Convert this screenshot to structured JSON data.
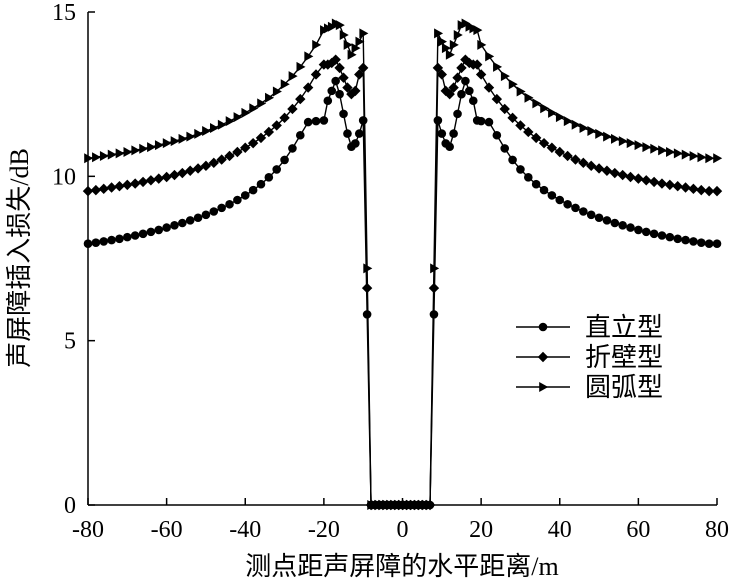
{
  "chart_data": {
    "type": "line",
    "title": "",
    "xlabel": "测点距声屏障的水平距离/m",
    "ylabel": "声屏障插入损失/dB",
    "xlim": [
      -80,
      80
    ],
    "ylim": [
      0,
      15
    ],
    "xticks": [
      -80,
      -60,
      -40,
      -20,
      0,
      20,
      40,
      60,
      80
    ],
    "yticks": [
      0,
      5,
      10,
      15
    ],
    "xtick_labels": [
      "-80",
      "-60",
      "-40",
      "-20",
      "0",
      "20",
      "40",
      "60",
      "80"
    ],
    "ytick_labels": [
      "0",
      "5",
      "10",
      "15"
    ],
    "grid": false,
    "legend_position": "right-middle",
    "x": [
      -80,
      -78,
      -76,
      -74,
      -72,
      -70,
      -68,
      -66,
      -64,
      -62,
      -60,
      -58,
      -56,
      -54,
      -52,
      -50,
      -48,
      -46,
      -44,
      -42,
      -40,
      -38,
      -36,
      -34,
      -32,
      -30,
      -28,
      -26,
      -24,
      -22,
      -20,
      -19,
      -18,
      -17,
      -16,
      -15,
      -14,
      -13,
      -12,
      -11,
      -10,
      -9,
      -8,
      -7,
      -6,
      -5,
      -4,
      -3,
      -2,
      -1,
      0,
      1,
      2,
      3,
      4,
      5,
      6,
      7,
      8,
      9,
      10,
      11,
      12,
      13,
      14,
      15,
      16,
      17,
      18,
      19,
      20,
      22,
      24,
      26,
      28,
      30,
      32,
      34,
      36,
      38,
      40,
      42,
      44,
      46,
      48,
      50,
      52,
      54,
      56,
      58,
      60,
      62,
      64,
      66,
      68,
      70,
      72,
      74,
      76,
      78,
      80
    ],
    "series": [
      {
        "name": "直立型",
        "marker": "circle",
        "values": [
          7.95,
          7.98,
          8.02,
          8.06,
          8.1,
          8.15,
          8.2,
          8.25,
          8.31,
          8.37,
          8.44,
          8.51,
          8.58,
          8.66,
          8.74,
          8.83,
          8.93,
          9.04,
          9.15,
          9.28,
          9.42,
          9.58,
          9.76,
          9.97,
          10.21,
          10.5,
          10.85,
          11.25,
          11.65,
          11.68,
          11.7,
          12.3,
          12.6,
          12.9,
          12.5,
          11.9,
          11.3,
          10.9,
          11.0,
          11.3,
          11.7,
          5.8,
          0,
          0,
          0,
          0,
          0,
          0,
          0,
          0,
          0,
          0,
          0,
          0,
          0,
          0,
          0,
          0,
          5.8,
          11.7,
          11.3,
          11.0,
          10.9,
          11.3,
          11.9,
          12.5,
          12.9,
          12.6,
          12.3,
          11.7,
          11.68,
          11.65,
          11.25,
          10.85,
          10.5,
          10.21,
          9.97,
          9.76,
          9.58,
          9.42,
          9.28,
          9.15,
          9.04,
          8.93,
          8.83,
          8.74,
          8.66,
          8.58,
          8.51,
          8.44,
          8.37,
          8.31,
          8.25,
          8.2,
          8.15,
          8.1,
          8.06,
          8.02,
          7.98,
          7.95,
          7.95
        ]
      },
      {
        "name": "折壁型",
        "marker": "diamond",
        "values": [
          9.55,
          9.58,
          9.62,
          9.66,
          9.7,
          9.74,
          9.78,
          9.83,
          9.88,
          9.93,
          9.98,
          10.04,
          10.1,
          10.17,
          10.24,
          10.32,
          10.41,
          10.51,
          10.62,
          10.74,
          10.87,
          11.01,
          11.17,
          11.35,
          11.55,
          11.78,
          12.05,
          12.35,
          12.7,
          13.1,
          13.4,
          13.4,
          13.45,
          13.55,
          13.3,
          13.0,
          12.7,
          12.5,
          12.6,
          13.1,
          13.3,
          6.6,
          0,
          0,
          0,
          0,
          0,
          0,
          0,
          0,
          0,
          0,
          0,
          0,
          0,
          0,
          0,
          0,
          6.6,
          13.3,
          13.1,
          12.6,
          12.5,
          12.7,
          13.0,
          13.3,
          13.55,
          13.45,
          13.4,
          13.4,
          13.1,
          12.7,
          12.35,
          12.05,
          11.78,
          11.55,
          11.35,
          11.17,
          11.01,
          10.87,
          10.74,
          10.62,
          10.51,
          10.41,
          10.32,
          10.24,
          10.17,
          10.1,
          10.04,
          9.98,
          9.93,
          9.88,
          9.83,
          9.78,
          9.74,
          9.7,
          9.66,
          9.62,
          9.58,
          9.55,
          9.55
        ]
      },
      {
        "name": "圆弧型",
        "marker": "triangle-right",
        "values": [
          10.55,
          10.58,
          10.62,
          10.66,
          10.7,
          10.74,
          10.79,
          10.84,
          10.89,
          10.95,
          11.01,
          11.07,
          11.14,
          11.21,
          11.29,
          11.38,
          11.47,
          11.57,
          11.68,
          11.8,
          11.93,
          12.07,
          12.22,
          12.39,
          12.58,
          12.8,
          13.05,
          13.33,
          13.65,
          14.0,
          14.45,
          14.5,
          14.55,
          14.65,
          14.6,
          14.3,
          14.0,
          13.7,
          13.9,
          14.1,
          14.35,
          7.2,
          0,
          0,
          0,
          0,
          0,
          0,
          0,
          0,
          0,
          0,
          0,
          0,
          0,
          0,
          0,
          0,
          7.2,
          14.35,
          14.1,
          13.9,
          13.7,
          14.0,
          14.3,
          14.6,
          14.65,
          14.55,
          14.5,
          14.45,
          14.0,
          13.65,
          13.33,
          13.05,
          12.8,
          12.58,
          12.39,
          12.22,
          12.07,
          11.93,
          11.8,
          11.68,
          11.57,
          11.47,
          11.38,
          11.29,
          11.21,
          11.14,
          11.07,
          11.01,
          10.95,
          10.89,
          10.84,
          10.79,
          10.74,
          10.7,
          10.66,
          10.62,
          10.58,
          10.55,
          10.55
        ]
      }
    ]
  }
}
